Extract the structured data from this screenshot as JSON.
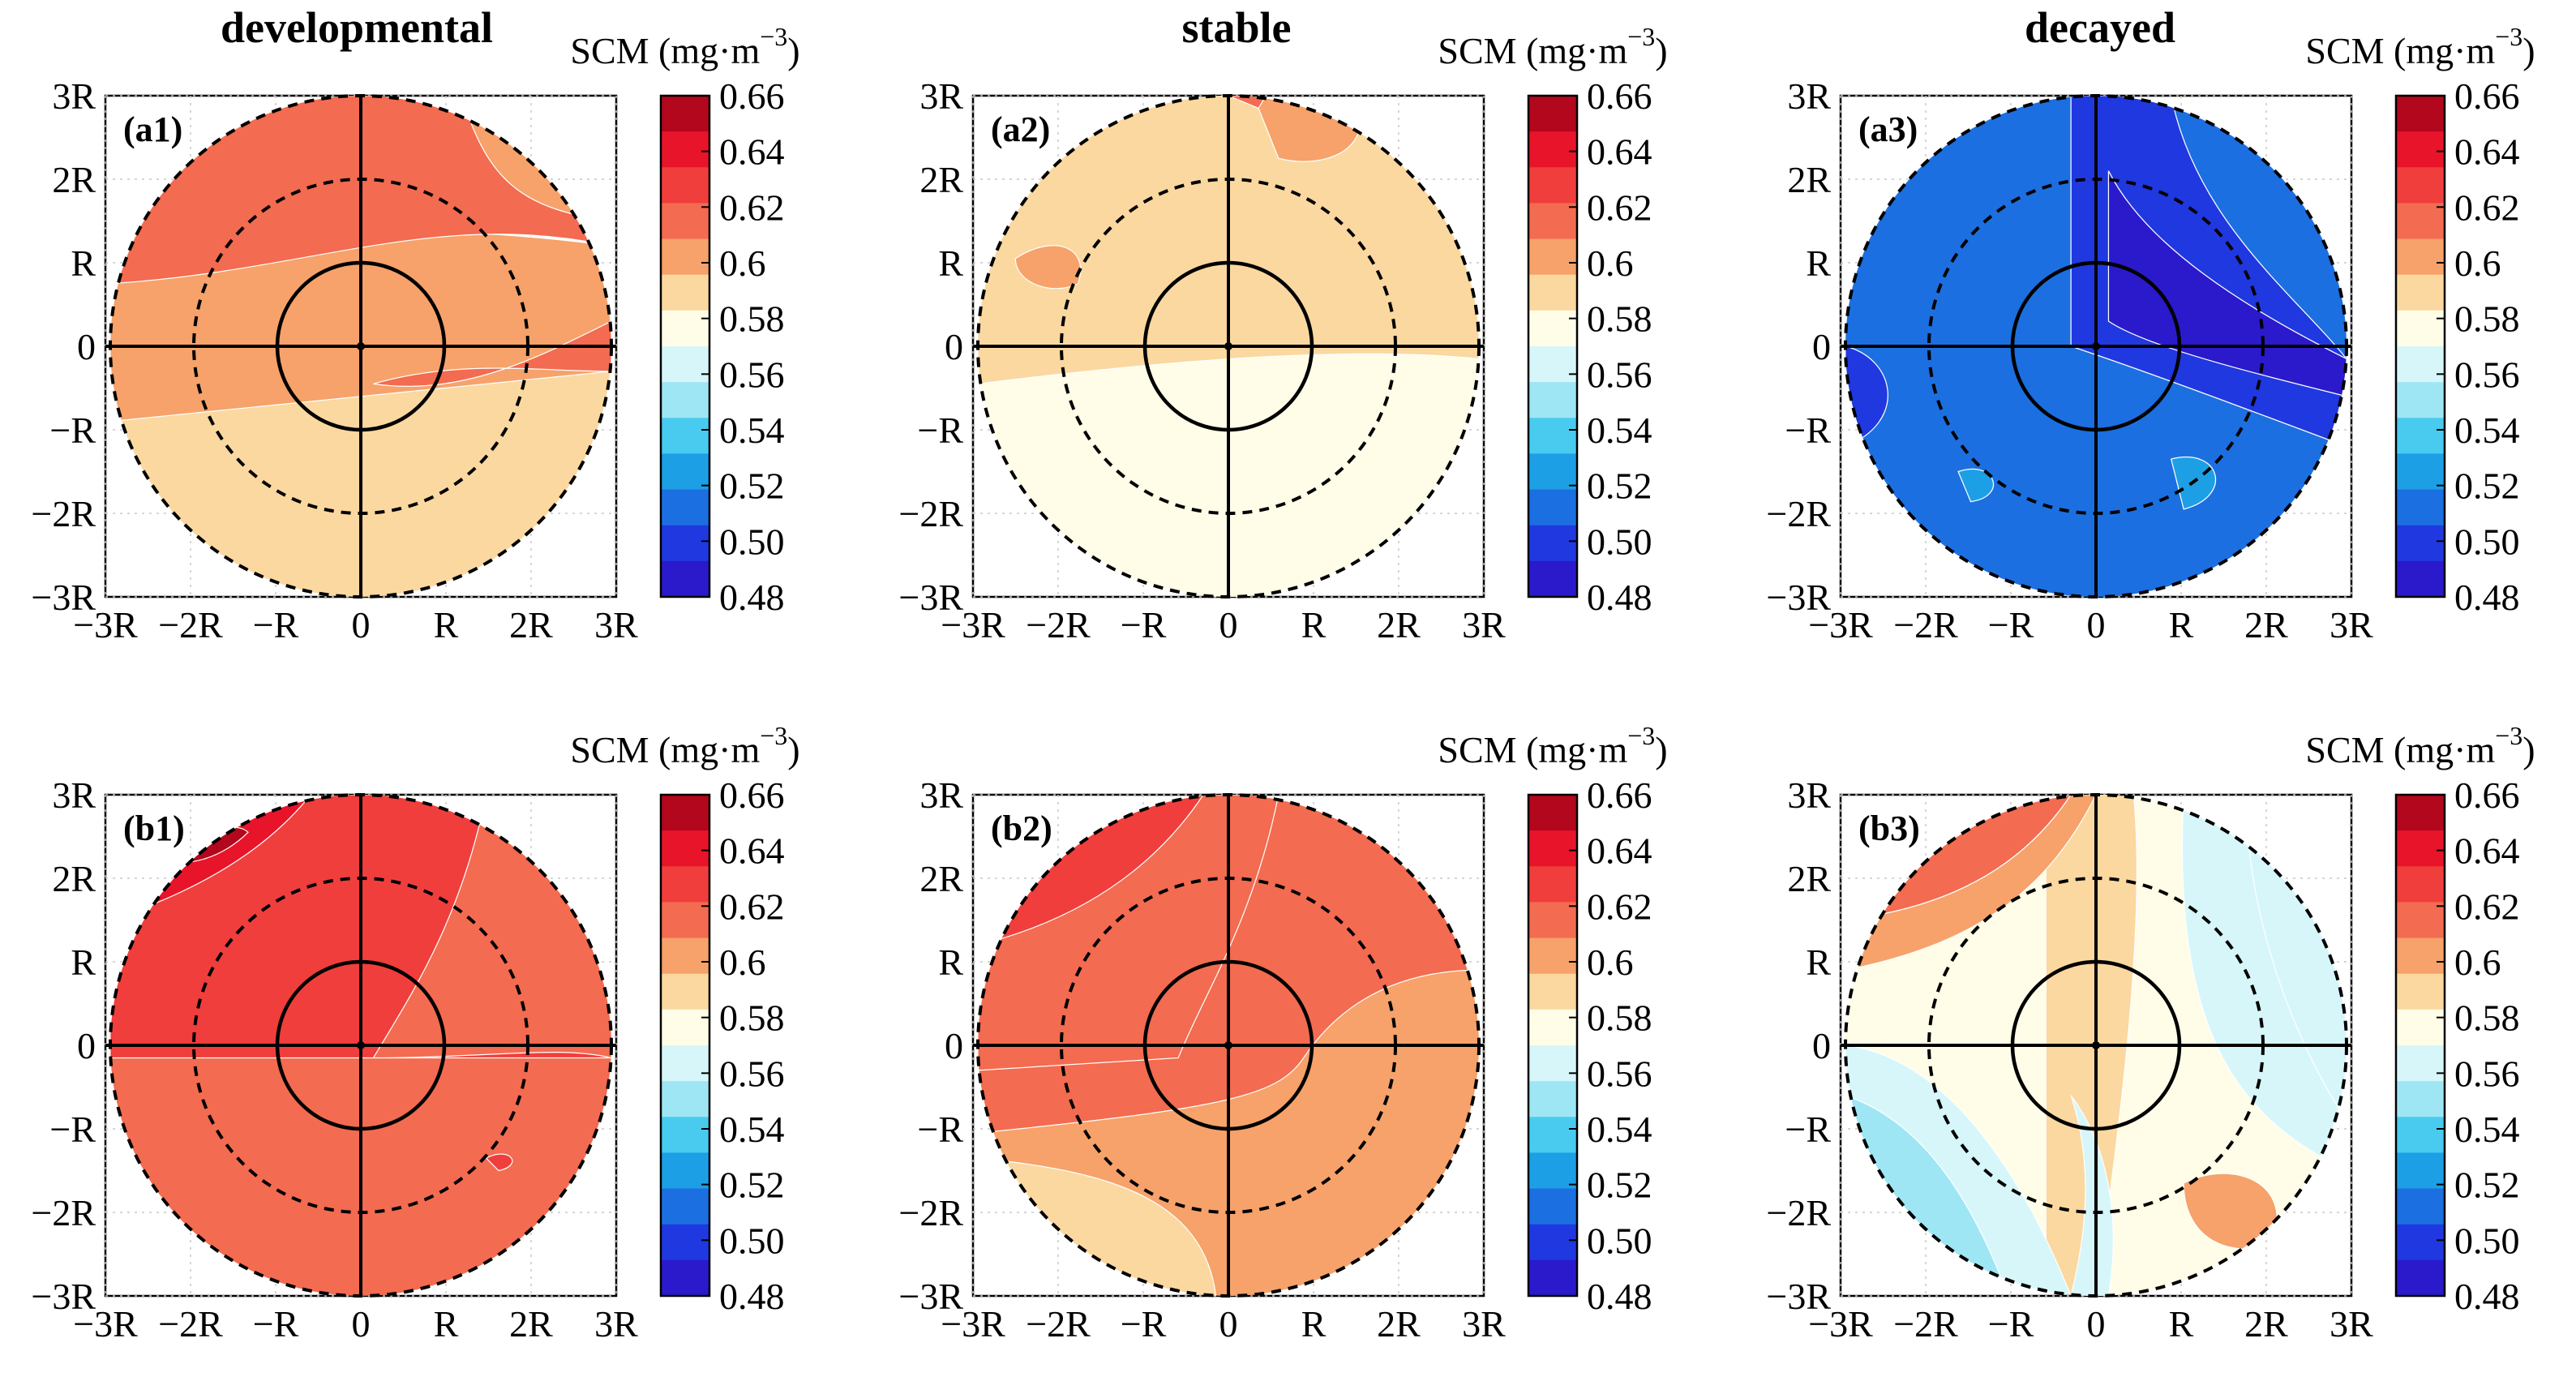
{
  "figure": {
    "column_titles": [
      "developmental",
      "stable",
      "decayed"
    ],
    "colorbar": {
      "title": "SCM (mg·m",
      "title_exponent": "−3",
      "title_close": ")",
      "tick_labels": [
        "0.66",
        "0.64",
        "0.62",
        "0.6",
        "0.58",
        "0.56",
        "0.54",
        "0.52",
        "0.50",
        "0.48"
      ],
      "colors": [
        "#b2071c",
        "#e8142a",
        "#f03e3c",
        "#f36b50",
        "#f6a26a",
        "#fbd8a0",
        "#fffde8",
        "#d6f6fa",
        "#9fe6f4",
        "#48cbee",
        "#1d9fe6",
        "#1c6fe0",
        "#2038e0",
        "#2a1acc"
      ]
    },
    "axis_tick_labels": [
      "−3R",
      "−2R",
      "−R",
      "0",
      "R",
      "2R",
      "3R"
    ],
    "y_axis_tick_labels": [
      "3R",
      "2R",
      "R",
      "0",
      "−R",
      "−2R",
      "−3R"
    ]
  },
  "chart_data": [
    {
      "id": "a1",
      "label": "(a1)",
      "type": "heatmap",
      "column": "developmental",
      "row": "a",
      "xlim": [
        "-3R",
        "3R"
      ],
      "ylim": [
        "-3R",
        "3R"
      ],
      "value_range": [
        0.48,
        0.66
      ],
      "approx_regions": [
        {
          "area": "north",
          "value": 0.61
        },
        {
          "area": "center",
          "value": 0.6
        },
        {
          "area": "east-band",
          "value": 0.61
        },
        {
          "area": "south",
          "value": 0.59
        }
      ]
    },
    {
      "id": "a2",
      "label": "(a2)",
      "type": "heatmap",
      "column": "stable",
      "row": "a",
      "xlim": [
        "-3R",
        "3R"
      ],
      "ylim": [
        "-3R",
        "3R"
      ],
      "value_range": [
        0.48,
        0.66
      ],
      "approx_regions": [
        {
          "area": "north-top",
          "value": 0.61
        },
        {
          "area": "center",
          "value": 0.59
        },
        {
          "area": "south",
          "value": 0.58
        }
      ]
    },
    {
      "id": "a3",
      "label": "(a3)",
      "type": "heatmap",
      "column": "decayed",
      "row": "a",
      "xlim": [
        "-3R",
        "3R"
      ],
      "ylim": [
        "-3R",
        "3R"
      ],
      "value_range": [
        0.48,
        0.66
      ],
      "approx_regions": [
        {
          "area": "general",
          "value": 0.51
        },
        {
          "area": "center-east",
          "value": 0.49
        }
      ]
    },
    {
      "id": "b1",
      "label": "(b1)",
      "type": "heatmap",
      "column": "developmental",
      "row": "b",
      "xlim": [
        "-3R",
        "3R"
      ],
      "ylim": [
        "-3R",
        "3R"
      ],
      "value_range": [
        0.48,
        0.66
      ],
      "approx_regions": [
        {
          "area": "north-west",
          "value": 0.65
        },
        {
          "area": "north",
          "value": 0.63
        },
        {
          "area": "south",
          "value": 0.61
        }
      ]
    },
    {
      "id": "b2",
      "label": "(b2)",
      "type": "heatmap",
      "column": "stable",
      "row": "b",
      "xlim": [
        "-3R",
        "3R"
      ],
      "ylim": [
        "-3R",
        "3R"
      ],
      "value_range": [
        0.48,
        0.66
      ],
      "approx_regions": [
        {
          "area": "north-west",
          "value": 0.63
        },
        {
          "area": "center",
          "value": 0.61
        },
        {
          "area": "south",
          "value": 0.6
        }
      ]
    },
    {
      "id": "b3",
      "label": "(b3)",
      "type": "heatmap",
      "column": "decayed",
      "row": "b",
      "xlim": [
        "-3R",
        "3R"
      ],
      "ylim": [
        "-3R",
        "3R"
      ],
      "value_range": [
        0.48,
        0.66
      ],
      "approx_regions": [
        {
          "area": "north-west",
          "value": 0.61
        },
        {
          "area": "center",
          "value": 0.59
        },
        {
          "area": "west",
          "value": 0.55
        },
        {
          "area": "east",
          "value": 0.56
        }
      ]
    }
  ]
}
